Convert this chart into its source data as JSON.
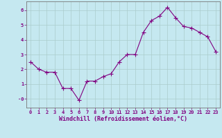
{
  "x": [
    0,
    1,
    2,
    3,
    4,
    5,
    6,
    7,
    8,
    9,
    10,
    11,
    12,
    13,
    14,
    15,
    16,
    17,
    18,
    19,
    20,
    21,
    22,
    23
  ],
  "y": [
    2.5,
    2.0,
    1.8,
    1.8,
    0.7,
    0.7,
    -0.1,
    1.2,
    1.2,
    1.5,
    1.7,
    2.5,
    3.0,
    3.0,
    4.5,
    5.3,
    5.6,
    6.2,
    5.5,
    4.9,
    4.8,
    4.5,
    4.2,
    3.2
  ],
  "line_color": "#800080",
  "marker": "+",
  "markersize": 4,
  "linewidth": 0.8,
  "background_color": "#c5e8f0",
  "grid_color": "#aacccc",
  "xlabel": "Windchill (Refroidissement éolien,°C)",
  "xlabel_color": "#800080",
  "xlim": [
    -0.5,
    23.5
  ],
  "ylim": [
    -0.6,
    6.6
  ],
  "yticks": [
    0,
    1,
    2,
    3,
    4,
    5,
    6
  ],
  "ytick_labels": [
    "-0",
    "1",
    "2",
    "3",
    "4",
    "5",
    "6"
  ],
  "xticks": [
    0,
    1,
    2,
    3,
    4,
    5,
    6,
    7,
    8,
    9,
    10,
    11,
    12,
    13,
    14,
    15,
    16,
    17,
    18,
    19,
    20,
    21,
    22,
    23
  ],
  "tick_color": "#800080",
  "tick_fontsize": 5,
  "xlabel_fontsize": 6
}
